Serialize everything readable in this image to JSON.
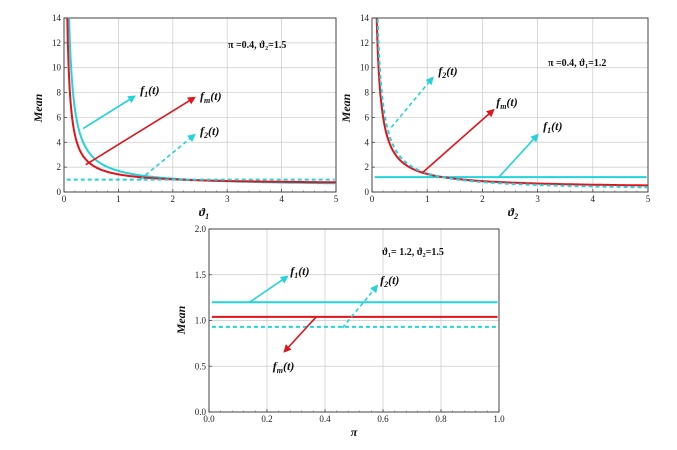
{
  "chart_data": [
    {
      "type": "line",
      "ylabel": "Mean",
      "xlabel": "ϑ1",
      "params": "π =0.4,  ϑ₂=1.5",
      "xlim": [
        0,
        5
      ],
      "ylim": [
        0,
        14
      ],
      "xticks": [
        "0",
        "1",
        "2",
        "3",
        "4",
        "5"
      ],
      "yticks": [
        "0",
        "2",
        "4",
        "6",
        "8",
        "10",
        "12",
        "14"
      ],
      "grid": true,
      "series": [
        {
          "name": "f1(t)",
          "color": "#22d3dd",
          "dash": false,
          "k": 1.25,
          "c": 0.45
        },
        {
          "name": "fm(t)",
          "color": "#e0141b",
          "dash": false,
          "k": 0.8,
          "c": 0.62
        },
        {
          "name": "f2(t)",
          "color": "#22d3dd",
          "dash": true,
          "const": 1.0
        }
      ],
      "labels": [
        {
          "text": "f1(t)",
          "name": "f1(t)",
          "tip": [
            1.3,
            7.7
          ],
          "tail": [
            0.35,
            5.1
          ],
          "color": "#22d3dd",
          "dash": false,
          "lx": 1.4,
          "ly": 7.9
        },
        {
          "text": "fm(t)",
          "name": "fm(t)",
          "tip": [
            2.4,
            7.6
          ],
          "tail": [
            0.4,
            2.2
          ],
          "color": "#e0141b",
          "dash": false,
          "lx": 2.5,
          "ly": 7.4
        },
        {
          "text": "f2(t)",
          "name": "f2(t)",
          "tip": [
            2.4,
            4.6
          ],
          "tail": [
            1.4,
            1.0
          ],
          "color": "#22d3dd",
          "dash": true,
          "lx": 2.5,
          "ly": 4.6
        }
      ]
    },
    {
      "type": "line",
      "ylabel": "Mean",
      "xlabel": "ϑ2",
      "params": "π =0.4,  ϑ₁=1.2",
      "xlim": [
        0,
        5
      ],
      "ylim": [
        0,
        14
      ],
      "xticks": [
        "0",
        "1",
        "2",
        "3",
        "4",
        "5"
      ],
      "yticks": [
        "0",
        "2",
        "4",
        "6",
        "8",
        "10",
        "12",
        "14"
      ],
      "grid": true,
      "series": [
        {
          "name": "f1(t)",
          "color": "#22d3dd",
          "dash": false,
          "const": 1.2
        },
        {
          "name": "fm(t)",
          "color": "#e0141b",
          "dash": false,
          "k": 1.15,
          "c": 0.3
        },
        {
          "name": "f2(t)",
          "color": "#22d3dd",
          "dash": true,
          "k": 1.4,
          "c": 0.1
        }
      ],
      "labels": [
        {
          "text": "f1(t)",
          "name": "f1(t)",
          "tip": [
            3.0,
            4.6
          ],
          "tail": [
            2.3,
            1.2
          ],
          "color": "#22d3dd",
          "dash": false,
          "lx": 3.1,
          "ly": 5.0
        },
        {
          "text": "fm(t)",
          "name": "fm(t)",
          "tip": [
            2.2,
            6.6
          ],
          "tail": [
            0.9,
            1.5
          ],
          "color": "#e0141b",
          "dash": false,
          "lx": 2.25,
          "ly": 6.9
        },
        {
          "text": "f2(t)",
          "name": "f2(t)",
          "tip": [
            1.1,
            9.2
          ],
          "tail": [
            0.35,
            5.2
          ],
          "color": "#22d3dd",
          "dash": true,
          "lx": 1.2,
          "ly": 9.4
        }
      ]
    },
    {
      "type": "line",
      "ylabel": "Mean",
      "xlabel": "π",
      "params": "ϑ₁= 1.2, ϑ₂=1.5",
      "xlim": [
        0,
        1
      ],
      "ylim": [
        0,
        2
      ],
      "xticks": [
        "0.0",
        "0.2",
        "0.4",
        "0.6",
        "0.8",
        "1.0"
      ],
      "yticks": [
        "0.0",
        "0.5",
        "1.0",
        "1.5",
        "2.0"
      ],
      "grid": true,
      "series": [
        {
          "name": "f1(t)",
          "color": "#22d3dd",
          "dash": false,
          "const": 1.2
        },
        {
          "name": "fm(t)",
          "color": "#e0141b",
          "dash": false,
          "const": 1.04
        },
        {
          "name": "f2(t)",
          "color": "#22d3dd",
          "dash": true,
          "const": 0.93
        }
      ],
      "labels": [
        {
          "text": "f1(t)",
          "name": "f1(t)",
          "tip": [
            0.27,
            1.48
          ],
          "tail": [
            0.14,
            1.2
          ],
          "color": "#22d3dd",
          "dash": false,
          "lx": 0.28,
          "ly": 1.5
        },
        {
          "text": "f2(t)",
          "name": "f2(t)",
          "tip": [
            0.58,
            1.38
          ],
          "tail": [
            0.46,
            0.92
          ],
          "color": "#22d3dd",
          "dash": true,
          "lx": 0.59,
          "ly": 1.4
        },
        {
          "text": "fm(t)",
          "name": "fm(t)",
          "tip": [
            0.26,
            0.66
          ],
          "tail": [
            0.37,
            1.04
          ],
          "color": "#e0141b",
          "dash": false,
          "lx": 0.22,
          "ly": 0.46
        }
      ]
    }
  ]
}
